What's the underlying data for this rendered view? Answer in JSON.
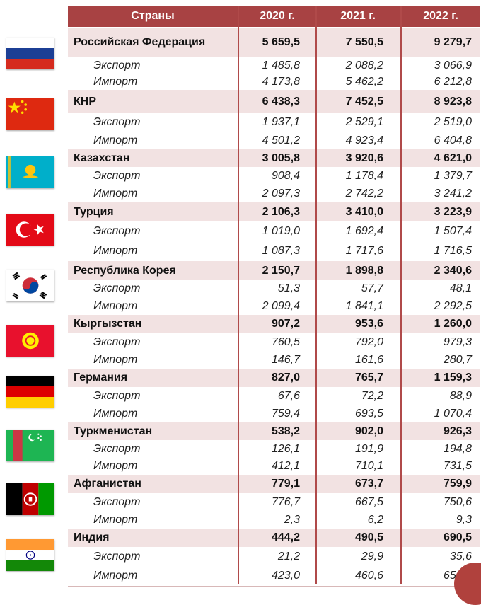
{
  "header": {
    "countries": "Страны",
    "y2020": "2020 г.",
    "y2021": "2021 г.",
    "y2022": "2022 г."
  },
  "rows": [
    {
      "country": "Российская Федерация",
      "total": [
        "5 659,5",
        "7 550,5",
        "9 279,7"
      ],
      "export": [
        "1 485,8",
        "2 088,2",
        "3 066,9"
      ],
      "import": [
        "4 173,8",
        "5 462,2",
        "6 212,8"
      ]
    },
    {
      "country": "КНР",
      "total": [
        "6 438,3",
        "7 452,5",
        "8 923,8"
      ],
      "export": [
        "1 937,1",
        "2 529,1",
        "2 519,0"
      ],
      "import": [
        "4 501,2",
        "4 923,4",
        "6 404,8"
      ]
    },
    {
      "country": "Казахстан",
      "total": [
        "3 005,8",
        "3 920,6",
        "4 621,0"
      ],
      "export": [
        "908,4",
        "1 178,4",
        "1 379,7"
      ],
      "import": [
        "2 097,3",
        "2 742,2",
        "3 241,2"
      ]
    },
    {
      "country": "Турция",
      "total": [
        "2 106,3",
        "3 410,0",
        "3 223,9"
      ],
      "export": [
        "1 019,0",
        "1 692,4",
        "1 507,4"
      ],
      "import": [
        "1 087,3",
        "1 717,6",
        "1 716,5"
      ]
    },
    {
      "country": "Республика Корея",
      "total": [
        "2 150,7",
        "1 898,8",
        "2 340,6"
      ],
      "export": [
        "51,3",
        "57,7",
        "48,1"
      ],
      "import": [
        "2 099,4",
        "1 841,1",
        "2 292,5"
      ]
    },
    {
      "country": "Кыргызстан",
      "total": [
        "907,2",
        "953,6",
        "1 260,0"
      ],
      "export": [
        "760,5",
        "792,0",
        "979,3"
      ],
      "import": [
        "146,7",
        "161,6",
        "280,7"
      ]
    },
    {
      "country": "Германия",
      "total": [
        "827,0",
        "765,7",
        "1 159,3"
      ],
      "export": [
        "67,6",
        "72,2",
        "88,9"
      ],
      "import": [
        "759,4",
        "693,5",
        "1 070,4"
      ]
    },
    {
      "country": "Туркменистан",
      "total": [
        "538,2",
        "902,0",
        "926,3"
      ],
      "export": [
        "126,1",
        "191,9",
        "194,8"
      ],
      "import": [
        "412,1",
        "710,1",
        "731,5"
      ]
    },
    {
      "country": "Афганистан",
      "total": [
        "779,1",
        "673,7",
        "759,9"
      ],
      "export": [
        "776,7",
        "667,5",
        "750,6"
      ],
      "import": [
        "2,3",
        "6,2",
        "9,3"
      ]
    },
    {
      "country": "Индия",
      "total": [
        "444,2",
        "490,5",
        "690,5"
      ],
      "export": [
        "21,2",
        "29,9",
        "35,6"
      ],
      "import": [
        "423,0",
        "460,6",
        "654,9"
      ]
    }
  ],
  "labels": {
    "export": "Экспорт",
    "import": "Импорт"
  },
  "flags": [
    "russia-flag-icon",
    "china-flag-icon",
    "kazakhstan-flag-icon",
    "turkey-flag-icon",
    "south-korea-flag-icon",
    "kyrgyzstan-flag-icon",
    "germany-flag-icon",
    "turkmenistan-flag-icon",
    "afghanistan-flag-icon",
    "india-flag-icon"
  ],
  "colors": {
    "header": "#a84243",
    "countryRow": "#f2e2e2",
    "divider": "#b04a4a"
  }
}
